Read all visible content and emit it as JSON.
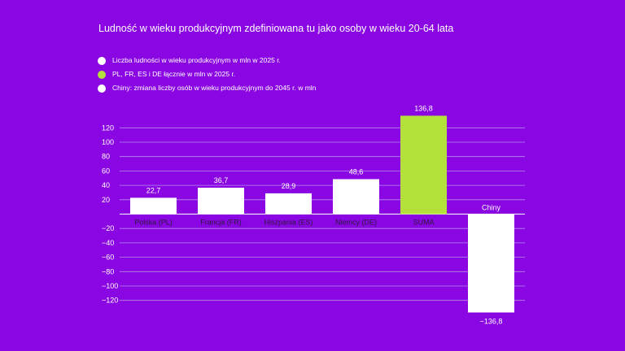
{
  "chart_data": {
    "type": "bar",
    "title": "Ludność w wieku produkcyjnym zdefiniowana tu jako osoby w wieku 20-64 lata",
    "legend": [
      {
        "label": "Liczba ludności w wieku produkcyjnym w mln w 2025 r.",
        "color": "#ffffff"
      },
      {
        "label": "PL, FR, ES i DE łącznie w mln w 2025 r.",
        "color": "#b3e03a"
      },
      {
        "label": "Chiny: zmiana liczby osób w wieku produkcyjnym do 2045 r. w mln",
        "color": "#ffffff"
      }
    ],
    "legend_position": "top-left",
    "categories": [
      "Polska (PL)",
      "Francja (FR)",
      "Hiszpania (ES)",
      "Niemcy (DE)",
      "SUMA",
      "Chiny"
    ],
    "values": [
      22.7,
      36.7,
      28.9,
      48.6,
      136.8,
      -136.8
    ],
    "value_labels": [
      "22,7",
      "36,7",
      "28,9",
      "48,6",
      "136,8",
      "−136,8"
    ],
    "bar_colors": [
      "#ffffff",
      "#ffffff",
      "#ffffff",
      "#ffffff",
      "#b3e03a",
      "#ffffff"
    ],
    "y_ticks": [
      120,
      100,
      80,
      60,
      40,
      20,
      -20,
      -40,
      -60,
      -80,
      -100,
      -120
    ],
    "y_tick_labels": [
      "120",
      "100",
      "80",
      "60",
      "40",
      "20",
      "−20",
      "−40",
      "−60",
      "−80",
      "−100",
      "−120"
    ],
    "ylim": [
      -136.8,
      136.8
    ],
    "grid": true,
    "xlabel": "",
    "ylabel": ""
  }
}
